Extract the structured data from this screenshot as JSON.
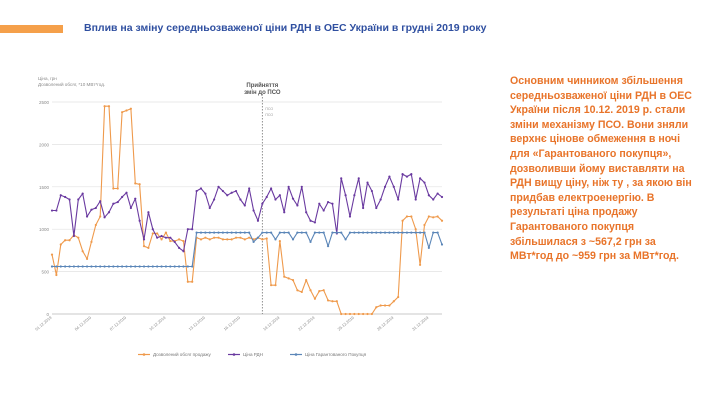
{
  "slide": {
    "title": "Вплив на зміну середньозваженої ціни РДН в ОЕС України в грудні 2019 року",
    "side_text": "Основним чинником збільшення середньозваженої ціни РДН в ОЕС України після 10.12. 2019 р. стали зміни механізму ПСО. Вони зняли верхнє цінове обмеження в ночі для «Гарантованого покупця», дозволивши йому виставляти на РДН вищу ціну, ніж ту , за якою він придбав електроенергію. В результаті ціна продажу Гарантованого покупця збільшилася з ~567,2 грн за МВт*год до ~959 грн за МВт*год.",
    "colors": {
      "accent": "#f5a04a",
      "title": "#2f4fa0",
      "text": "#e8742a"
    }
  },
  "chart_data": {
    "type": "line",
    "ylabel_lines": [
      "Ціна, грн",
      "Дозволений обсяг, *10 МВт*год."
    ],
    "annotation_lines": [
      "Прийняття",
      "змін до ПСО"
    ],
    "annotation_small": [
      "ПСО",
      "ПСО"
    ],
    "ylim": [
      0,
      2500
    ],
    "yticks": [
      0,
      500,
      1000,
      1500,
      2000,
      2500
    ],
    "grid": true,
    "legend_position": "bottom",
    "x_tick_labels": [
      "01.12.2019",
      "04.12.2019",
      "07.12.2019",
      "10.12.2019",
      "13.12.2019",
      "16.12.2019",
      "19.12.2019",
      "22.12.2019",
      "25.12.2019",
      "28.12.2019",
      "31.12.2019"
    ],
    "event_x_index": 48,
    "series": [
      {
        "name": "Дозволений обсяг продажу",
        "color": "#ef9a4c",
        "values": [
          700,
          460,
          820,
          870,
          870,
          930,
          900,
          740,
          650,
          850,
          1050,
          1150,
          2450,
          2450,
          1480,
          1480,
          2380,
          2400,
          2420,
          1540,
          1530,
          800,
          780,
          950,
          950,
          880,
          960,
          860,
          860,
          880,
          860,
          380,
          380,
          900,
          880,
          900,
          880,
          900,
          900,
          880,
          880,
          880,
          900,
          900,
          880,
          900,
          880,
          900,
          880,
          890,
          340,
          340,
          860,
          440,
          420,
          400,
          280,
          260,
          400,
          280,
          180,
          270,
          280,
          160,
          150,
          150,
          0,
          0,
          0,
          0,
          0,
          0,
          0,
          0,
          80,
          100,
          100,
          100,
          150,
          200,
          1100,
          1150,
          1150,
          1000,
          580,
          1050,
          1150,
          1140,
          1150,
          1100
        ]
      },
      {
        "name": "Ціна РДН",
        "color": "#6a3aa0",
        "values": [
          1220,
          1220,
          1400,
          1380,
          1350,
          920,
          1350,
          1420,
          1150,
          1230,
          1250,
          1330,
          1140,
          1200,
          1300,
          1320,
          1380,
          1430,
          1250,
          1360,
          1100,
          880,
          1200,
          1000,
          900,
          920,
          900,
          900,
          850,
          780,
          740,
          1000,
          1000,
          1450,
          1480,
          1420,
          1250,
          1350,
          1500,
          1450,
          1400,
          1430,
          1450,
          1350,
          1280,
          1480,
          1220,
          1100,
          1300,
          1380,
          1480,
          1350,
          1400,
          1200,
          1500,
          1360,
          1280,
          1500,
          1200,
          1100,
          1080,
          1300,
          1220,
          1320,
          1300,
          950,
          1600,
          1400,
          1150,
          1400,
          1600,
          1250,
          1550,
          1450,
          1250,
          1350,
          1500,
          1620,
          1500,
          1350,
          1650,
          1620,
          1650,
          1350,
          1600,
          1550,
          1400,
          1350,
          1420,
          1380
        ]
      },
      {
        "name": "Ціна Гарантованого Покупця",
        "color": "#5b86b8",
        "values": [
          560,
          560,
          560,
          560,
          560,
          560,
          560,
          560,
          560,
          560,
          560,
          560,
          560,
          560,
          560,
          560,
          560,
          560,
          560,
          560,
          560,
          560,
          560,
          560,
          560,
          560,
          560,
          560,
          560,
          560,
          560,
          560,
          560,
          960,
          960,
          960,
          960,
          960,
          960,
          960,
          960,
          960,
          960,
          960,
          960,
          960,
          850,
          900,
          960,
          960,
          960,
          880,
          960,
          960,
          960,
          880,
          960,
          960,
          960,
          850,
          960,
          960,
          960,
          800,
          960,
          960,
          960,
          880,
          960,
          960,
          960,
          960,
          960,
          960,
          960,
          960,
          960,
          960,
          960,
          960,
          960,
          960,
          960,
          960,
          960,
          960,
          780,
          960,
          960,
          820
        ]
      }
    ]
  }
}
